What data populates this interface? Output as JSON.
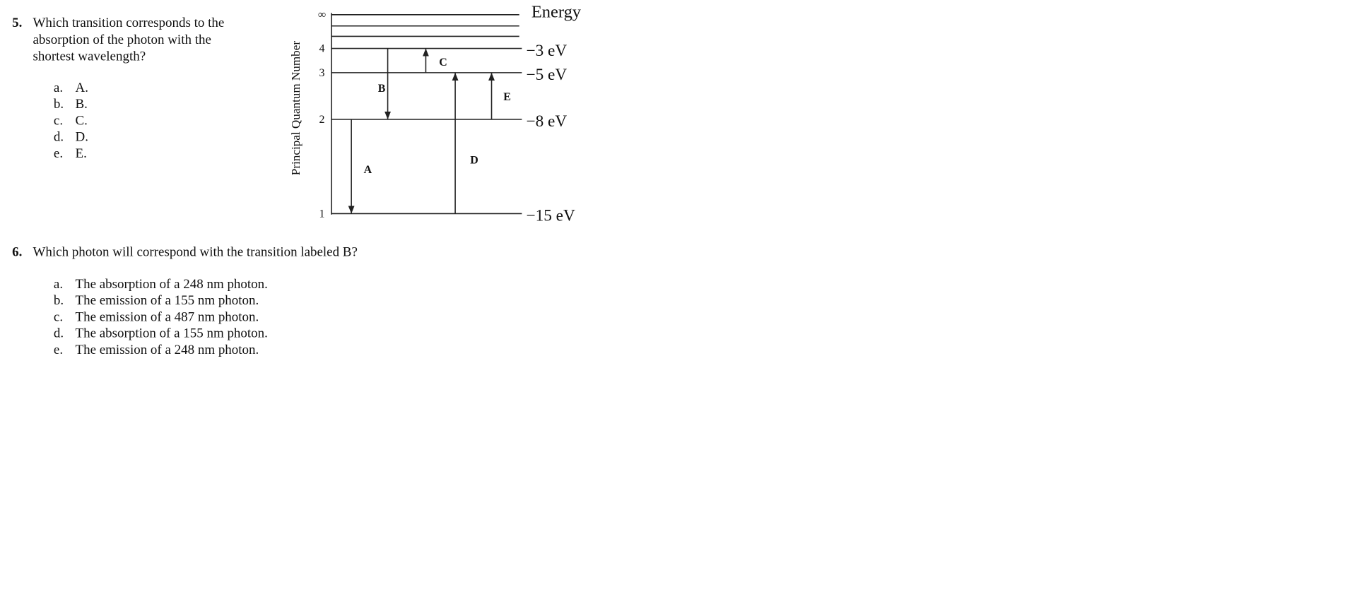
{
  "questions": [
    {
      "number": "5.",
      "lines": [
        "Which transition corresponds to the",
        "absorption of the photon with the",
        "shortest wavelength?"
      ],
      "options": [
        {
          "letter": "a.",
          "text": "A."
        },
        {
          "letter": "b.",
          "text": "B."
        },
        {
          "letter": "c.",
          "text": "C."
        },
        {
          "letter": "d.",
          "text": "D."
        },
        {
          "letter": "e.",
          "text": "E."
        }
      ]
    },
    {
      "number": "6.",
      "lines": [
        "Which photon will correspond with the transition labeled B?"
      ],
      "options": [
        {
          "letter": "a.",
          "text": "The absorption of a 248 nm photon."
        },
        {
          "letter": "b.",
          "text": "The emission of a 155 nm photon."
        },
        {
          "letter": "c.",
          "text": "The emission of a 487 nm photon."
        },
        {
          "letter": "d.",
          "text": "The absorption of a 155 nm photon."
        },
        {
          "letter": "e.",
          "text": "The emission of a 248 nm photon."
        }
      ]
    }
  ],
  "diagram": {
    "axis_label": "Principal Quantum Number",
    "energy_label": "Energy",
    "levels": [
      {
        "n": "∞"
      },
      {
        "n": "4",
        "energy": "−3 eV"
      },
      {
        "n": "3",
        "energy": "−5 eV"
      },
      {
        "n": "2",
        "energy": "−8 eV"
      },
      {
        "n": "1",
        "energy": "−15 eV"
      }
    ],
    "transitions": [
      "A",
      "B",
      "C",
      "D",
      "E"
    ]
  }
}
